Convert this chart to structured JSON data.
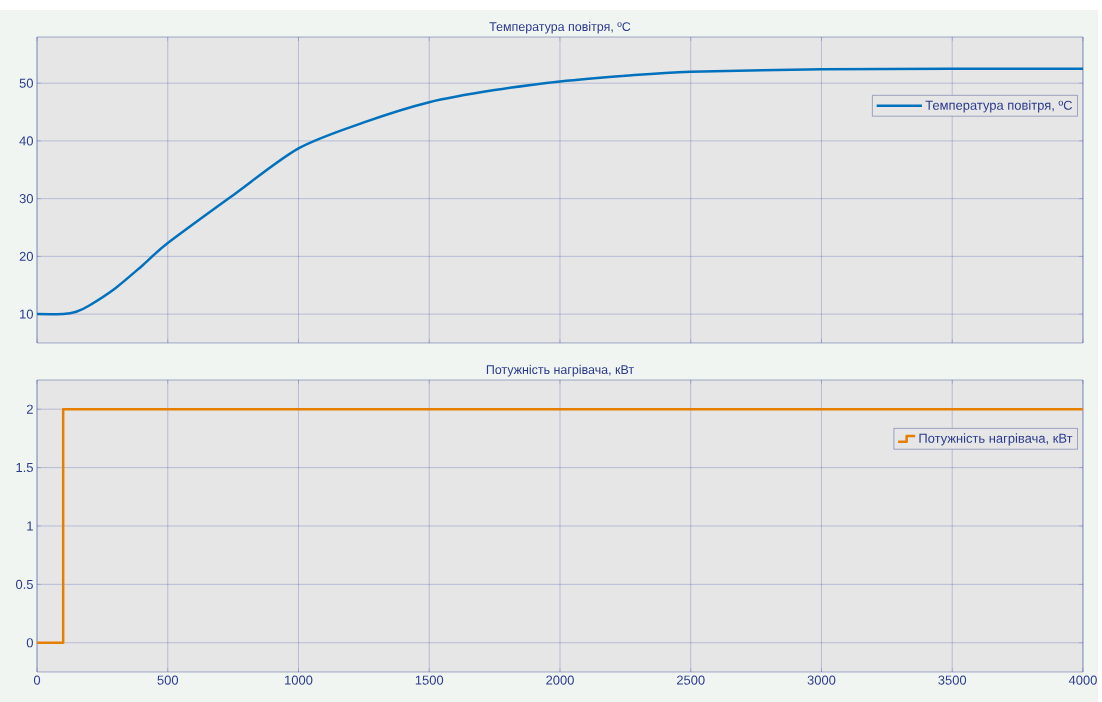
{
  "chart_data": [
    {
      "type": "line",
      "title": "Температура повітря, ºС",
      "xlim": [
        0,
        4000
      ],
      "ylim": [
        5,
        58
      ],
      "xticks": [
        0,
        500,
        1000,
        1500,
        2000,
        2500,
        3000,
        3500,
        4000
      ],
      "yticks": [
        10,
        20,
        30,
        40,
        50
      ],
      "tick_labels": "y",
      "grid": true,
      "legend": "top right",
      "series": [
        {
          "name": "Температура повітря, ºС",
          "color": "#0072bd",
          "x": [
            0,
            100,
            150,
            200,
            300,
            400,
            500,
            750,
            1000,
            1250,
            1500,
            1750,
            2000,
            2250,
            2500,
            3000,
            3500,
            4000
          ],
          "values": [
            10,
            10,
            10.4,
            11.5,
            14.5,
            18.3,
            22.3,
            30.6,
            38.7,
            43.2,
            46.7,
            48.8,
            50.3,
            51.3,
            52.0,
            52.4,
            52.5,
            52.5
          ]
        }
      ]
    },
    {
      "type": "step",
      "title": "Потужність нагрівача, кВт",
      "xlim": [
        0,
        4000
      ],
      "ylim": [
        -0.25,
        2.25
      ],
      "xticks": [
        0,
        500,
        1000,
        1500,
        2000,
        2500,
        3000,
        3500,
        4000
      ],
      "yticks": [
        0,
        0.5,
        1,
        1.5,
        2
      ],
      "grid": true,
      "legend": "top right",
      "series": [
        {
          "name": "Потужність нагрівача, кВт",
          "color": "#e67e00",
          "x": [
            0,
            100,
            4000
          ],
          "values": [
            0,
            2,
            2
          ]
        }
      ]
    }
  ]
}
